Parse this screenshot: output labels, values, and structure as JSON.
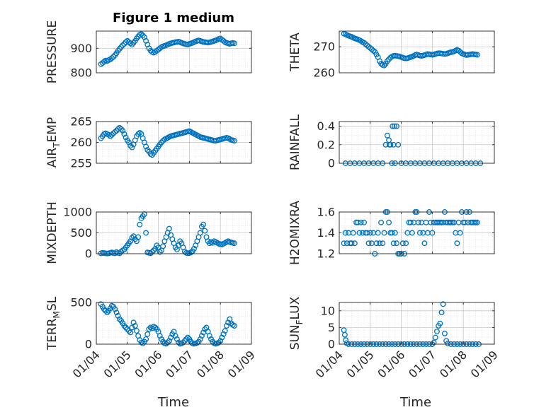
{
  "figure": {
    "title": "Figure 1 medium",
    "marker_color": "#0072BD",
    "x_tick_labels": [
      "01/04",
      "01/05",
      "01/06",
      "01/07",
      "01/08",
      "01/09"
    ],
    "x_label": "Time"
  },
  "chart_data": [
    {
      "type": "scatter",
      "ylabel": "PRESSURE",
      "ylabel_sub": "",
      "ylabel_tail": "",
      "xlim": [
        0,
        5
      ],
      "ylim": [
        800,
        970
      ],
      "yticks": [
        800,
        900
      ],
      "grid": true,
      "x": [
        0.15,
        0.2,
        0.25,
        0.3,
        0.35,
        0.4,
        0.45,
        0.5,
        0.55,
        0.6,
        0.65,
        0.7,
        0.75,
        0.8,
        0.85,
        0.9,
        0.95,
        1.0,
        1.05,
        1.1,
        1.15,
        1.2,
        1.25,
        1.3,
        1.35,
        1.4,
        1.45,
        1.5,
        1.55,
        1.6,
        1.65,
        1.7,
        1.75,
        1.8,
        1.85,
        1.9,
        1.95,
        2.0,
        2.05,
        2.1,
        2.15,
        2.2,
        2.25,
        2.3,
        2.35,
        2.4,
        2.45,
        2.5,
        2.55,
        2.6,
        2.65,
        2.7,
        2.75,
        2.8,
        2.85,
        2.9,
        2.95,
        3.0,
        3.05,
        3.1,
        3.15,
        3.2,
        3.25,
        3.3,
        3.35,
        3.4,
        3.45,
        3.5,
        3.55,
        3.6,
        3.65,
        3.7,
        3.75,
        3.8,
        3.85,
        3.9,
        3.95,
        4.0,
        4.05,
        4.1,
        4.15,
        4.2,
        4.25,
        4.3,
        4.35,
        4.4,
        4.45
      ],
      "y": [
        835,
        840,
        845,
        850,
        848,
        852,
        855,
        860,
        865,
        872,
        880,
        890,
        898,
        905,
        912,
        918,
        925,
        930,
        925,
        920,
        915,
        922,
        930,
        940,
        948,
        955,
        958,
        952,
        945,
        930,
        915,
        900,
        890,
        885,
        882,
        885,
        890,
        895,
        900,
        905,
        908,
        910,
        912,
        915,
        918,
        920,
        922,
        923,
        925,
        926,
        927,
        925,
        922,
        920,
        918,
        916,
        915,
        918,
        920,
        922,
        925,
        928,
        930,
        932,
        930,
        928,
        926,
        925,
        924,
        923,
        924,
        926,
        928,
        930,
        932,
        935,
        938,
        940,
        935,
        930,
        925,
        922,
        920,
        918,
        920,
        922,
        920
      ]
    },
    {
      "type": "scatter",
      "ylabel": "THETA",
      "ylabel_sub": "",
      "ylabel_tail": "",
      "xlim": [
        0,
        5
      ],
      "ylim": [
        260,
        276
      ],
      "yticks": [
        260,
        270
      ],
      "grid": true,
      "x": [
        0.15,
        0.2,
        0.25,
        0.3,
        0.35,
        0.4,
        0.45,
        0.5,
        0.55,
        0.6,
        0.65,
        0.7,
        0.75,
        0.8,
        0.85,
        0.9,
        0.95,
        1.0,
        1.05,
        1.1,
        1.15,
        1.2,
        1.25,
        1.3,
        1.35,
        1.4,
        1.45,
        1.5,
        1.55,
        1.6,
        1.65,
        1.7,
        1.75,
        1.8,
        1.85,
        1.9,
        1.95,
        2.0,
        2.05,
        2.1,
        2.15,
        2.2,
        2.25,
        2.3,
        2.35,
        2.4,
        2.45,
        2.5,
        2.55,
        2.6,
        2.65,
        2.7,
        2.75,
        2.8,
        2.85,
        2.9,
        2.95,
        3.0,
        3.05,
        3.1,
        3.15,
        3.2,
        3.25,
        3.3,
        3.35,
        3.4,
        3.45,
        3.5,
        3.55,
        3.6,
        3.65,
        3.7,
        3.75,
        3.8,
        3.85,
        3.9,
        3.95,
        4.0,
        4.05,
        4.1,
        4.15,
        4.2,
        4.25,
        4.3,
        4.35,
        4.4,
        4.45
      ],
      "y": [
        275,
        274.8,
        274.5,
        274.2,
        274,
        273.8,
        273.5,
        273.2,
        273,
        272.8,
        272.5,
        272.2,
        271.8,
        271.5,
        271,
        270.5,
        270,
        269.5,
        269,
        268.5,
        268,
        267,
        266,
        264.5,
        263.5,
        263,
        262.8,
        263.5,
        264.5,
        265.2,
        265.8,
        266.2,
        266.5,
        266.6,
        266.5,
        266.4,
        266.2,
        266,
        265.8,
        265.6,
        265.5,
        265.6,
        265.8,
        266,
        266.2,
        266.5,
        266.8,
        267,
        266.8,
        266.6,
        266.5,
        266.6,
        266.8,
        267,
        267.2,
        267.1,
        267,
        266.9,
        267,
        267.2,
        267.4,
        267.5,
        267.5,
        267.4,
        267.3,
        267.2,
        267.3,
        267.5,
        267.7,
        267.9,
        268,
        268.2,
        268.5,
        268.8,
        268.5,
        268,
        267.5,
        267.2,
        267,
        266.8,
        266.9,
        267,
        267.1,
        267.2,
        267.1,
        267,
        266.9
      ]
    },
    {
      "type": "scatter",
      "ylabel": "AIR",
      "ylabel_sub": "T",
      "ylabel_tail": "EMP",
      "xlim": [
        0,
        5
      ],
      "ylim": [
        255,
        265
      ],
      "yticks": [
        255,
        260,
        265
      ],
      "grid": true,
      "x": [
        0.15,
        0.2,
        0.25,
        0.3,
        0.35,
        0.4,
        0.45,
        0.5,
        0.55,
        0.6,
        0.65,
        0.7,
        0.75,
        0.8,
        0.85,
        0.9,
        0.95,
        1.0,
        1.05,
        1.1,
        1.15,
        1.2,
        1.25,
        1.3,
        1.35,
        1.4,
        1.45,
        1.5,
        1.55,
        1.6,
        1.65,
        1.7,
        1.75,
        1.8,
        1.85,
        1.9,
        1.95,
        2.0,
        2.05,
        2.1,
        2.15,
        2.2,
        2.25,
        2.3,
        2.35,
        2.4,
        2.45,
        2.5,
        2.55,
        2.6,
        2.65,
        2.7,
        2.75,
        2.8,
        2.85,
        2.9,
        2.95,
        3.0,
        3.05,
        3.1,
        3.15,
        3.2,
        3.25,
        3.3,
        3.35,
        3.4,
        3.45,
        3.5,
        3.55,
        3.6,
        3.65,
        3.7,
        3.75,
        3.8,
        3.85,
        3.9,
        3.95,
        4.0,
        4.05,
        4.1,
        4.15,
        4.2,
        4.25,
        4.3,
        4.35,
        4.4,
        4.45
      ],
      "y": [
        261,
        261.5,
        262,
        262.2,
        262,
        261.8,
        261.5,
        261.8,
        262.2,
        262.5,
        262.8,
        263.2,
        263.5,
        263.2,
        262.8,
        262,
        261.2,
        260.5,
        260,
        259.2,
        258.8,
        259.5,
        260.5,
        261.5,
        262,
        262.3,
        262,
        261,
        260,
        259,
        258.2,
        257.8,
        257.2,
        257,
        257.5,
        258,
        258.5,
        259,
        259.5,
        260,
        260.4,
        260.7,
        260.9,
        261.1,
        261.3,
        261.5,
        261.6,
        261.7,
        261.8,
        261.9,
        262,
        262.1,
        262.2,
        262.3,
        262.4,
        262.5,
        262.6,
        262.7,
        262.5,
        262.3,
        262.1,
        261.9,
        261.7,
        261.5,
        261.3,
        261.2,
        261.1,
        261,
        260.9,
        260.8,
        260.7,
        260.6,
        260.5,
        260.4,
        260.4,
        260.5,
        260.6,
        260.7,
        260.8,
        260.9,
        261,
        261.1,
        261,
        260.8,
        260.6,
        260.5,
        260.4
      ]
    },
    {
      "type": "scatter",
      "ylabel": "RAINFALL",
      "ylabel_sub": "",
      "ylabel_tail": "",
      "xlim": [
        0,
        5
      ],
      "ylim": [
        0,
        0.45
      ],
      "yticks": [
        0,
        0.2,
        0.4
      ],
      "grid": true,
      "x": [
        0.2,
        0.35,
        0.5,
        0.65,
        0.8,
        0.95,
        1.1,
        1.25,
        1.4,
        1.5,
        1.55,
        1.6,
        1.62,
        1.65,
        1.7,
        1.72,
        1.75,
        1.78,
        1.8,
        1.85,
        1.9,
        2.0,
        2.15,
        2.3,
        2.45,
        2.6,
        2.75,
        2.9,
        3.05,
        3.2,
        3.35,
        3.5,
        3.65,
        3.8,
        3.95,
        4.1,
        4.25,
        4.4,
        4.55
      ],
      "y": [
        0,
        0,
        0,
        0,
        0,
        0,
        0,
        0,
        0,
        0.2,
        0.3,
        0.25,
        0.2,
        0.2,
        0,
        0.4,
        0.2,
        0.4,
        0,
        0.4,
        0.2,
        0,
        0,
        0,
        0,
        0,
        0,
        0,
        0,
        0,
        0,
        0,
        0,
        0,
        0,
        0,
        0,
        0,
        0
      ]
    },
    {
      "type": "scatter",
      "ylabel": "MIXDEPTH",
      "ylabel_sub": "",
      "ylabel_tail": "",
      "xlim": [
        0,
        5
      ],
      "ylim": [
        0,
        1000
      ],
      "yticks": [
        0,
        500,
        1000
      ],
      "grid": true,
      "x": [
        0.15,
        0.2,
        0.25,
        0.3,
        0.35,
        0.4,
        0.45,
        0.5,
        0.55,
        0.6,
        0.65,
        0.7,
        0.75,
        0.8,
        0.85,
        0.9,
        0.95,
        1.0,
        1.05,
        1.1,
        1.15,
        1.2,
        1.25,
        1.3,
        1.35,
        1.4,
        1.45,
        1.5,
        1.55,
        1.6,
        1.65,
        1.7,
        1.75,
        1.8,
        1.85,
        1.9,
        1.95,
        2.0,
        2.05,
        2.1,
        2.15,
        2.2,
        2.25,
        2.3,
        2.35,
        2.4,
        2.45,
        2.5,
        2.55,
        2.6,
        2.65,
        2.7,
        2.75,
        2.8,
        2.85,
        2.9,
        2.95,
        3.0,
        3.05,
        3.1,
        3.15,
        3.2,
        3.25,
        3.3,
        3.35,
        3.4,
        3.45,
        3.5,
        3.55,
        3.6,
        3.65,
        3.7,
        3.75,
        3.8,
        3.85,
        3.9,
        3.95,
        4.0,
        4.05,
        4.1,
        4.15,
        4.2,
        4.25,
        4.3,
        4.35,
        4.4,
        4.45
      ],
      "y": [
        10,
        20,
        15,
        10,
        5,
        10,
        20,
        30,
        15,
        10,
        40,
        20,
        10,
        50,
        80,
        100,
        150,
        200,
        250,
        300,
        380,
        420,
        350,
        300,
        400,
        700,
        850,
        900,
        950,
        500,
        30,
        20,
        10,
        40,
        80,
        120,
        200,
        150,
        40,
        80,
        180,
        300,
        400,
        500,
        600,
        450,
        350,
        250,
        150,
        100,
        200,
        300,
        250,
        150,
        50,
        20,
        10,
        15,
        30,
        60,
        120,
        200,
        300,
        400,
        500,
        650,
        700,
        550,
        400,
        300,
        250,
        280,
        260,
        300,
        280,
        260,
        240,
        230,
        220,
        240,
        260,
        280,
        300,
        280,
        270,
        260,
        250
      ]
    },
    {
      "type": "scatter",
      "ylabel": "H2OMIXRA",
      "ylabel_sub": "",
      "ylabel_tail": "",
      "xlim": [
        0,
        5
      ],
      "ylim": [
        1.2,
        1.6
      ],
      "yticks": [
        1.2,
        1.4,
        1.6
      ],
      "grid": true,
      "x": [
        0.15,
        0.2,
        0.25,
        0.3,
        0.35,
        0.4,
        0.45,
        0.5,
        0.55,
        0.6,
        0.65,
        0.7,
        0.75,
        0.8,
        0.85,
        0.9,
        0.95,
        1.0,
        1.05,
        1.1,
        1.15,
        1.2,
        1.25,
        1.3,
        1.35,
        1.4,
        1.45,
        1.5,
        1.55,
        1.6,
        1.65,
        1.7,
        1.75,
        1.8,
        1.85,
        1.9,
        1.95,
        2.0,
        2.05,
        2.1,
        2.15,
        2.2,
        2.25,
        2.3,
        2.35,
        2.4,
        2.45,
        2.5,
        2.55,
        2.6,
        2.65,
        2.7,
        2.75,
        2.8,
        2.85,
        2.9,
        2.95,
        3.0,
        3.05,
        3.1,
        3.15,
        3.2,
        3.25,
        3.3,
        3.35,
        3.4,
        3.45,
        3.5,
        3.55,
        3.6,
        3.65,
        3.7,
        3.75,
        3.8,
        3.85,
        3.9,
        3.95,
        4.0,
        4.05,
        4.1,
        4.15,
        4.2,
        4.25,
        4.3,
        4.35,
        4.4,
        4.45
      ],
      "y": [
        1.3,
        1.4,
        1.3,
        1.4,
        1.3,
        1.3,
        1.4,
        1.3,
        1.5,
        1.5,
        1.4,
        1.5,
        1.4,
        1.5,
        1.4,
        1.4,
        1.3,
        1.4,
        1.3,
        1.4,
        1.2,
        1.3,
        1.4,
        1.3,
        1.5,
        1.3,
        1.4,
        1.6,
        1.6,
        1.5,
        1.4,
        1.4,
        1.3,
        1.4,
        1.3,
        1.2,
        1.2,
        1.2,
        1.3,
        1.2,
        1.3,
        1.4,
        1.5,
        1.5,
        1.4,
        1.5,
        1.6,
        1.6,
        1.5,
        1.4,
        1.5,
        1.4,
        1.3,
        1.5,
        1.4,
        1.6,
        1.5,
        1.4,
        1.5,
        1.5,
        1.5,
        1.5,
        1.5,
        1.5,
        1.5,
        1.6,
        1.5,
        1.5,
        1.5,
        1.5,
        1.5,
        1.5,
        1.4,
        1.3,
        1.5,
        1.4,
        1.6,
        1.5,
        1.5,
        1.6,
        1.5,
        1.6,
        1.5,
        1.5,
        1.5,
        1.5,
        1.5
      ]
    },
    {
      "type": "scatter",
      "ylabel": "TERR",
      "ylabel_sub": "M",
      "ylabel_tail": "SL",
      "xlim": [
        0,
        5
      ],
      "ylim": [
        0,
        500
      ],
      "yticks": [
        0,
        500
      ],
      "grid": true,
      "x": [
        0.15,
        0.2,
        0.25,
        0.3,
        0.35,
        0.4,
        0.45,
        0.5,
        0.55,
        0.6,
        0.65,
        0.7,
        0.75,
        0.8,
        0.85,
        0.9,
        0.95,
        1.0,
        1.05,
        1.1,
        1.15,
        1.2,
        1.25,
        1.3,
        1.35,
        1.4,
        1.45,
        1.5,
        1.55,
        1.6,
        1.65,
        1.7,
        1.75,
        1.8,
        1.85,
        1.9,
        1.95,
        2.0,
        2.05,
        2.1,
        2.15,
        2.2,
        2.25,
        2.3,
        2.35,
        2.4,
        2.45,
        2.5,
        2.55,
        2.6,
        2.65,
        2.7,
        2.75,
        2.8,
        2.85,
        2.9,
        2.95,
        3.0,
        3.05,
        3.1,
        3.15,
        3.2,
        3.25,
        3.3,
        3.35,
        3.4,
        3.45,
        3.5,
        3.55,
        3.6,
        3.65,
        3.7,
        3.75,
        3.8,
        3.85,
        3.9,
        3.95,
        4.0,
        4.05,
        4.1,
        4.15,
        4.2,
        4.25,
        4.3,
        4.35,
        4.4,
        4.45
      ],
      "y": [
        480,
        450,
        420,
        400,
        380,
        400,
        430,
        460,
        450,
        420,
        380,
        340,
        300,
        280,
        250,
        220,
        200,
        180,
        160,
        140,
        200,
        260,
        220,
        160,
        100,
        50,
        20,
        10,
        30,
        60,
        120,
        180,
        200,
        190,
        210,
        200,
        180,
        150,
        100,
        60,
        30,
        10,
        5,
        20,
        40,
        80,
        120,
        150,
        100,
        60,
        20,
        5,
        10,
        20,
        40,
        60,
        80,
        60,
        30,
        10,
        5,
        8,
        15,
        30,
        60,
        100,
        140,
        180,
        200,
        150,
        100,
        60,
        30,
        10,
        5,
        10,
        20,
        40,
        80,
        120,
        160,
        220,
        260,
        300,
        250,
        230,
        220
      ]
    },
    {
      "type": "scatter",
      "ylabel": "SUN",
      "ylabel_sub": "F",
      "ylabel_tail": "LUX",
      "xlim": [
        0,
        5
      ],
      "ylim": [
        0,
        12.5
      ],
      "yticks": [
        0,
        5,
        10
      ],
      "grid": true,
      "x": [
        0.15,
        0.18,
        0.21,
        0.24,
        0.3,
        0.4,
        0.5,
        0.6,
        0.7,
        0.8,
        0.9,
        1.0,
        1.1,
        1.2,
        1.3,
        1.4,
        1.5,
        1.6,
        1.7,
        1.8,
        1.9,
        2.0,
        2.1,
        2.2,
        2.3,
        2.4,
        2.5,
        2.6,
        2.7,
        2.8,
        2.9,
        3.0,
        3.05,
        3.1,
        3.15,
        3.2,
        3.25,
        3.3,
        3.35,
        3.4,
        3.45,
        3.5,
        3.6,
        3.7,
        3.8,
        3.9,
        4.0,
        4.1,
        4.2,
        4.3,
        4.4,
        4.5
      ],
      "y": [
        4.2,
        2.8,
        1.2,
        0.3,
        0,
        0,
        0,
        0,
        0,
        0,
        0,
        0,
        0,
        0,
        0,
        0,
        0,
        0,
        0,
        0,
        0,
        0,
        0,
        0,
        0,
        0,
        0,
        0,
        0,
        0,
        0,
        0,
        0.5,
        2,
        3.8,
        5.5,
        6.2,
        9.5,
        12,
        3.2,
        1,
        0.2,
        0,
        0,
        0,
        0,
        0,
        0,
        0,
        0,
        0,
        0
      ]
    }
  ]
}
